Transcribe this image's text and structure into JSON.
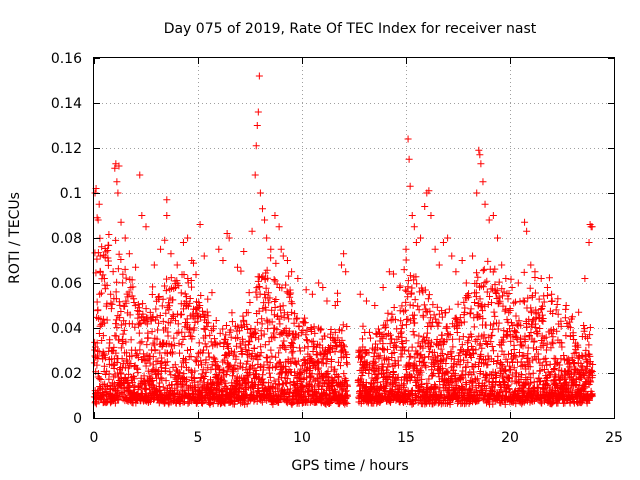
{
  "chart_data": {
    "type": "scatter",
    "title": "Day 075 of 2019, Rate Of TEC Index for receiver nast",
    "xlabel": "GPS time / hours",
    "ylabel": "ROTI / TECUs",
    "xlim": [
      0,
      25
    ],
    "ylim": [
      0,
      0.16
    ],
    "x_ticks": [
      0,
      5,
      10,
      15,
      20,
      25
    ],
    "x_tick_labels": [
      "0",
      "5",
      "10",
      "15",
      "20",
      "25"
    ],
    "y_ticks": [
      0,
      0.02,
      0.04,
      0.06,
      0.08,
      0.1,
      0.12,
      0.14,
      0.16
    ],
    "y_tick_labels": [
      "0",
      "0.02",
      "0.04",
      "0.06",
      "0.08",
      "0.1",
      "0.12",
      "0.14",
      "0.16"
    ],
    "grid": true,
    "marker": "plus",
    "marker_color": "#ff0000",
    "data_gap_hours": [
      12.2,
      12.7
    ],
    "series": [
      {
        "name": "ROTI",
        "points": [
          [
            0.05,
            0.1
          ],
          [
            0.1,
            0.102
          ],
          [
            0.15,
            0.089
          ],
          [
            0.2,
            0.088
          ],
          [
            0.25,
            0.095
          ],
          [
            0.3,
            0.072
          ],
          [
            0.5,
            0.062
          ],
          [
            0.8,
            0.055
          ],
          [
            1.0,
            0.111
          ],
          [
            1.05,
            0.113
          ],
          [
            1.1,
            0.105
          ],
          [
            1.2,
            0.112
          ],
          [
            1.15,
            0.1
          ],
          [
            1.3,
            0.087
          ],
          [
            1.5,
            0.08
          ],
          [
            1.7,
            0.073
          ],
          [
            2.0,
            0.067
          ],
          [
            2.2,
            0.108
          ],
          [
            2.3,
            0.09
          ],
          [
            2.5,
            0.085
          ],
          [
            2.9,
            0.068
          ],
          [
            3.2,
            0.075
          ],
          [
            3.4,
            0.079
          ],
          [
            3.5,
            0.097
          ],
          [
            3.5,
            0.09
          ],
          [
            3.7,
            0.073
          ],
          [
            4.0,
            0.068
          ],
          [
            4.3,
            0.078
          ],
          [
            4.5,
            0.08
          ],
          [
            4.7,
            0.07
          ],
          [
            5.1,
            0.086
          ],
          [
            5.3,
            0.072
          ],
          [
            6.0,
            0.075
          ],
          [
            6.2,
            0.07
          ],
          [
            6.4,
            0.082
          ],
          [
            6.5,
            0.08
          ],
          [
            6.9,
            0.067
          ],
          [
            7.2,
            0.074
          ],
          [
            7.6,
            0.083
          ],
          [
            7.75,
            0.108
          ],
          [
            7.8,
            0.121
          ],
          [
            7.85,
            0.13
          ],
          [
            7.9,
            0.136
          ],
          [
            7.95,
            0.152
          ],
          [
            8.0,
            0.1
          ],
          [
            8.1,
            0.093
          ],
          [
            8.2,
            0.088
          ],
          [
            8.3,
            0.08
          ],
          [
            8.5,
            0.075
          ],
          [
            8.7,
            0.09
          ],
          [
            8.9,
            0.085
          ],
          [
            9.0,
            0.075
          ],
          [
            9.1,
            0.072
          ],
          [
            9.3,
            0.07
          ],
          [
            9.5,
            0.065
          ],
          [
            9.8,
            0.062
          ],
          [
            10.2,
            0.057
          ],
          [
            10.5,
            0.055
          ],
          [
            10.8,
            0.06
          ],
          [
            11.0,
            0.058
          ],
          [
            11.2,
            0.052
          ],
          [
            11.6,
            0.05
          ],
          [
            11.9,
            0.068
          ],
          [
            12.0,
            0.073
          ],
          [
            12.1,
            0.065
          ],
          [
            12.8,
            0.055
          ],
          [
            13.1,
            0.052
          ],
          [
            13.5,
            0.05
          ],
          [
            13.9,
            0.058
          ],
          [
            14.2,
            0.065
          ],
          [
            14.4,
            0.064
          ],
          [
            14.7,
            0.058
          ],
          [
            15.0,
            0.075
          ],
          [
            15.1,
            0.124
          ],
          [
            15.15,
            0.115
          ],
          [
            15.2,
            0.103
          ],
          [
            15.3,
            0.09
          ],
          [
            15.4,
            0.085
          ],
          [
            15.5,
            0.078
          ],
          [
            15.7,
            0.08
          ],
          [
            15.9,
            0.094
          ],
          [
            16.0,
            0.1
          ],
          [
            16.1,
            0.101
          ],
          [
            16.2,
            0.09
          ],
          [
            16.4,
            0.075
          ],
          [
            16.6,
            0.068
          ],
          [
            16.8,
            0.078
          ],
          [
            17.0,
            0.08
          ],
          [
            17.2,
            0.072
          ],
          [
            17.4,
            0.065
          ],
          [
            17.7,
            0.07
          ],
          [
            17.9,
            0.06
          ],
          [
            18.2,
            0.072
          ],
          [
            18.4,
            0.1
          ],
          [
            18.5,
            0.119
          ],
          [
            18.55,
            0.117
          ],
          [
            18.6,
            0.113
          ],
          [
            18.7,
            0.105
          ],
          [
            18.8,
            0.095
          ],
          [
            19.0,
            0.088
          ],
          [
            19.2,
            0.09
          ],
          [
            19.4,
            0.08
          ],
          [
            19.6,
            0.068
          ],
          [
            19.8,
            0.062
          ],
          [
            20.1,
            0.058
          ],
          [
            20.4,
            0.06
          ],
          [
            20.7,
            0.087
          ],
          [
            20.8,
            0.083
          ],
          [
            21.0,
            0.068
          ],
          [
            21.2,
            0.065
          ],
          [
            21.5,
            0.062
          ],
          [
            21.8,
            0.058
          ],
          [
            22.0,
            0.055
          ],
          [
            22.3,
            0.053
          ],
          [
            22.7,
            0.05
          ],
          [
            23.0,
            0.045
          ],
          [
            23.3,
            0.047
          ],
          [
            23.6,
            0.062
          ],
          [
            23.8,
            0.078
          ],
          [
            23.85,
            0.086
          ],
          [
            23.9,
            0.085
          ],
          [
            23.95,
            0.085
          ]
        ]
      }
    ]
  }
}
